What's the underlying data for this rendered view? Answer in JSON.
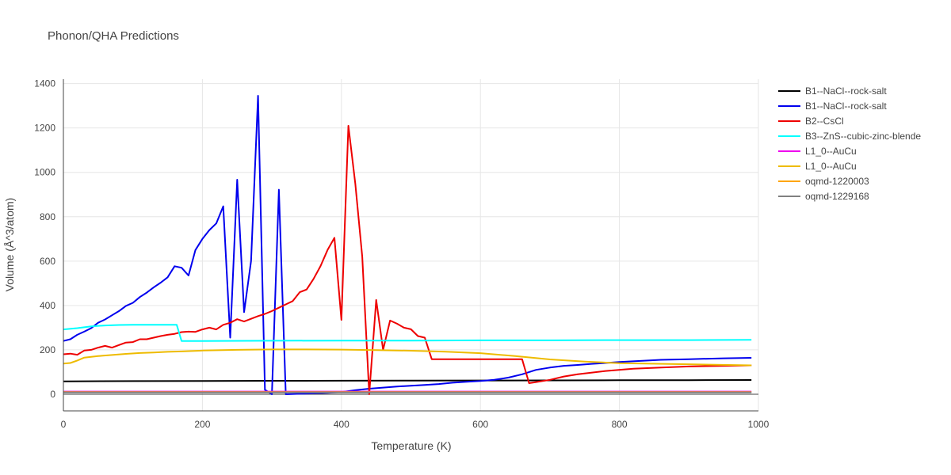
{
  "chart_data": {
    "type": "line",
    "title": "Phonon/QHA Predictions",
    "xlabel": "Temperature (K)",
    "ylabel": "Volume (Å^3/atom)",
    "xlim": [
      0,
      1000
    ],
    "ylim": [
      -75,
      1420
    ],
    "xticks": [
      0,
      200,
      400,
      600,
      800,
      1000
    ],
    "yticks": [
      0,
      200,
      400,
      600,
      800,
      1000,
      1200,
      1400
    ],
    "grid": true,
    "legend_position": "right",
    "series": [
      {
        "name": "B1--NaCl--rock-salt",
        "color": "#000000",
        "x": [
          0,
          100,
          200,
          300,
          400,
          500,
          600,
          700,
          800,
          900,
          990
        ],
        "y": [
          58,
          59,
          60,
          60.5,
          61,
          61.5,
          62,
          62.5,
          63,
          63.5,
          64
        ]
      },
      {
        "name": "B1--NaCl--rock-salt",
        "color": "#0000ee",
        "x": [
          0,
          10,
          20,
          30,
          40,
          50,
          60,
          70,
          80,
          90,
          100,
          110,
          120,
          130,
          140,
          150,
          160,
          170,
          180,
          190,
          200,
          210,
          220,
          230,
          240,
          250,
          260,
          270,
          280,
          290,
          300,
          310,
          320,
          340,
          360,
          380,
          400,
          420,
          440,
          460,
          480,
          500,
          520,
          540,
          560,
          580,
          600,
          620,
          640,
          660,
          680,
          700,
          720,
          740,
          760,
          780,
          800,
          830,
          860,
          900,
          950,
          990
        ],
        "y": [
          240,
          248,
          268,
          282,
          298,
          322,
          337,
          356,
          375,
          398,
          412,
          438,
          458,
          482,
          503,
          527,
          577,
          570,
          535,
          650,
          700,
          740,
          770,
          847,
          255,
          967,
          370,
          600,
          1345,
          20,
          0,
          922,
          0,
          2,
          4,
          6,
          10,
          18,
          25,
          30,
          35,
          38,
          42,
          46,
          52,
          56,
          60,
          65,
          75,
          90,
          110,
          120,
          128,
          132,
          137,
          141,
          145,
          150,
          155,
          158,
          162,
          164
        ]
      },
      {
        "name": "B2--CsCl",
        "color": "#ee0000",
        "x": [
          0,
          10,
          20,
          30,
          40,
          50,
          60,
          70,
          80,
          90,
          100,
          110,
          120,
          130,
          140,
          150,
          160,
          170,
          180,
          190,
          200,
          210,
          220,
          230,
          240,
          250,
          260,
          270,
          280,
          290,
          300,
          310,
          320,
          330,
          340,
          350,
          360,
          370,
          380,
          390,
          400,
          410,
          420,
          430,
          440,
          450,
          460,
          470,
          480,
          490,
          500,
          510,
          520,
          530,
          540,
          560,
          580,
          600,
          620,
          640,
          660,
          670,
          680,
          700,
          720,
          740,
          780,
          820,
          860,
          900,
          950,
          990
        ],
        "y": [
          180,
          183,
          178,
          197,
          200,
          210,
          218,
          210,
          222,
          233,
          235,
          248,
          248,
          255,
          262,
          268,
          272,
          280,
          282,
          281,
          292,
          300,
          292,
          313,
          322,
          338,
          328,
          340,
          352,
          362,
          375,
          390,
          405,
          420,
          460,
          472,
          520,
          578,
          650,
          705,
          335,
          1210,
          950,
          620,
          0,
          425,
          200,
          332,
          318,
          300,
          293,
          262,
          255,
          158,
          158,
          158,
          158,
          158,
          158,
          158,
          158,
          50,
          55,
          65,
          80,
          90,
          105,
          115,
          120,
          125,
          128,
          130
        ]
      },
      {
        "name": "B3--ZnS--cubic-zinc-blende",
        "color": "#00ffff",
        "x": [
          0,
          20,
          40,
          60,
          80,
          100,
          120,
          140,
          163,
          170,
          200,
          300,
          400,
          500,
          600,
          700,
          800,
          900,
          990
        ],
        "y": [
          292,
          298,
          306,
          310,
          312,
          313,
          313,
          313,
          313,
          240,
          240,
          241,
          242,
          242,
          243,
          243,
          244,
          244,
          245
        ]
      },
      {
        "name": "L1_0--AuCu",
        "color": "#ee00ee",
        "x": [
          0,
          200,
          400,
          600,
          800,
          990
        ],
        "y": [
          12,
          12,
          12,
          12,
          12,
          12
        ]
      },
      {
        "name": "L1_0--AuCu",
        "color": "#eebb00",
        "x": [
          0,
          10,
          20,
          30,
          50,
          70,
          90,
          110,
          130,
          150,
          170,
          200,
          250,
          300,
          350,
          400,
          450,
          500,
          550,
          600,
          650,
          700,
          750,
          800,
          900,
          990
        ],
        "y": [
          138,
          141,
          152,
          165,
          172,
          177,
          182,
          186,
          188,
          191,
          193,
          197,
          200,
          202,
          202,
          201,
          199,
          196,
          192,
          185,
          172,
          157,
          147,
          140,
          135,
          130
        ]
      },
      {
        "name": "oqmd-1220003",
        "color": "#ffa500",
        "x": [
          0,
          200,
          400,
          600,
          800,
          990
        ],
        "y": [
          10,
          10,
          10,
          10,
          10,
          10
        ]
      },
      {
        "name": "oqmd-1229168",
        "color": "#808080",
        "x": [
          0,
          200,
          400,
          600,
          800,
          990
        ],
        "y": [
          8,
          8,
          8,
          8,
          8,
          8
        ]
      }
    ]
  }
}
